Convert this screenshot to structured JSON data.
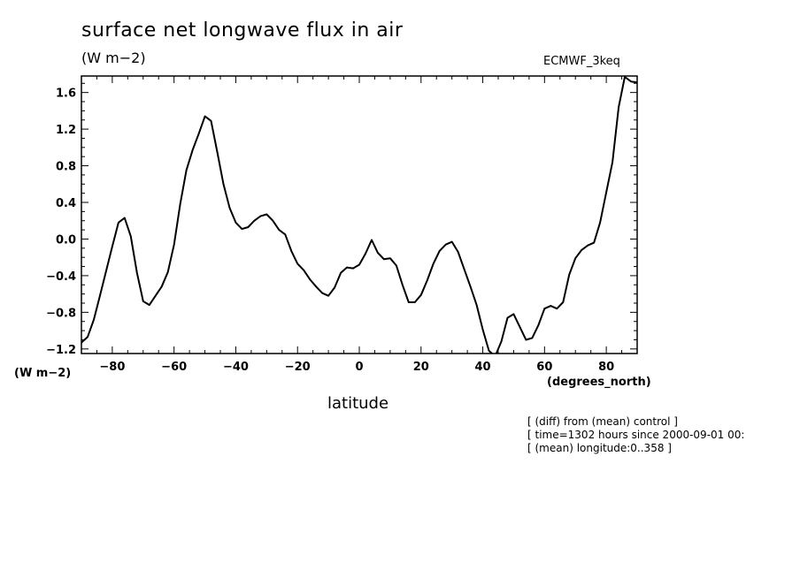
{
  "title": "surface net longwave flux in air",
  "units": "(W m−2)",
  "dataset": "ECMWF_3keq",
  "y_units_label": "(W m−2)",
  "x_units_label": "(degrees_north)",
  "x_label": "latitude",
  "notes": [
    "[ (diff) from (mean) control ]",
    "[ time=1302 hours since 2000-09-01 00:",
    "[ (mean) longitude:0..358 ]"
  ],
  "chart_data": {
    "type": "line",
    "title": "surface net longwave flux in air",
    "xlabel": "latitude",
    "ylabel": "(W m−2)",
    "xlim": [
      -90,
      90
    ],
    "ylim": [
      -1.25,
      1.78
    ],
    "x_ticks": [
      -80,
      -60,
      -40,
      -20,
      0,
      20,
      40,
      60,
      80
    ],
    "x_tick_labels": [
      "−80",
      "−60",
      "−40",
      "−20",
      "0",
      "20",
      "40",
      "60",
      "80"
    ],
    "y_ticks": [
      -1.2,
      -0.8,
      -0.4,
      0.0,
      0.4,
      0.8,
      1.2,
      1.6
    ],
    "y_tick_labels": [
      "−1.2",
      "−0.8",
      "−0.4",
      "0.0",
      "0.4",
      "0.8",
      "1.2",
      "1.6"
    ],
    "grid": false,
    "series": [
      {
        "color": "#000000",
        "x": [
          -90,
          -88,
          -86,
          -84,
          -82,
          -80,
          -78,
          -76,
          -74,
          -72,
          -70,
          -68,
          -66,
          -64,
          -62,
          -60,
          -58,
          -56,
          -54,
          -52,
          -50,
          -48,
          -46,
          -44,
          -42,
          -40,
          -38,
          -36,
          -34,
          -32,
          -30,
          -28,
          -26,
          -24,
          -22,
          -20,
          -18,
          -16,
          -14,
          -12,
          -10,
          -8,
          -6,
          -4,
          -2,
          0,
          2,
          4,
          6,
          8,
          10,
          12,
          14,
          16,
          18,
          20,
          22,
          24,
          26,
          28,
          30,
          32,
          34,
          36,
          38,
          40,
          42,
          44,
          46,
          48,
          50,
          52,
          54,
          56,
          58,
          60,
          62,
          64,
          66,
          68,
          70,
          72,
          74,
          76,
          78,
          80,
          82,
          84,
          86,
          88,
          90
        ],
        "y": [
          -1.13,
          -1.07,
          -0.88,
          -0.62,
          -0.35,
          -0.08,
          0.18,
          0.23,
          0.03,
          -0.37,
          -0.68,
          -0.72,
          -0.62,
          -0.52,
          -0.36,
          -0.06,
          0.38,
          0.75,
          0.97,
          1.15,
          1.34,
          1.29,
          0.95,
          0.6,
          0.34,
          0.18,
          0.11,
          0.13,
          0.2,
          0.25,
          0.27,
          0.2,
          0.1,
          0.05,
          -0.13,
          -0.27,
          -0.34,
          -0.44,
          -0.52,
          -0.59,
          -0.62,
          -0.53,
          -0.37,
          -0.31,
          -0.32,
          -0.28,
          -0.16,
          -0.01,
          -0.15,
          -0.22,
          -0.21,
          -0.29,
          -0.5,
          -0.69,
          -0.69,
          -0.61,
          -0.45,
          -0.27,
          -0.13,
          -0.06,
          -0.03,
          -0.14,
          -0.33,
          -0.52,
          -0.72,
          -0.99,
          -1.22,
          -1.28,
          -1.12,
          -0.86,
          -0.82,
          -0.96,
          -1.1,
          -1.08,
          -0.94,
          -0.76,
          -0.73,
          -0.76,
          -0.69,
          -0.39,
          -0.21,
          -0.12,
          -0.07,
          -0.04,
          0.18,
          0.51,
          0.84,
          1.44,
          1.77,
          1.72,
          1.71
        ]
      }
    ]
  }
}
